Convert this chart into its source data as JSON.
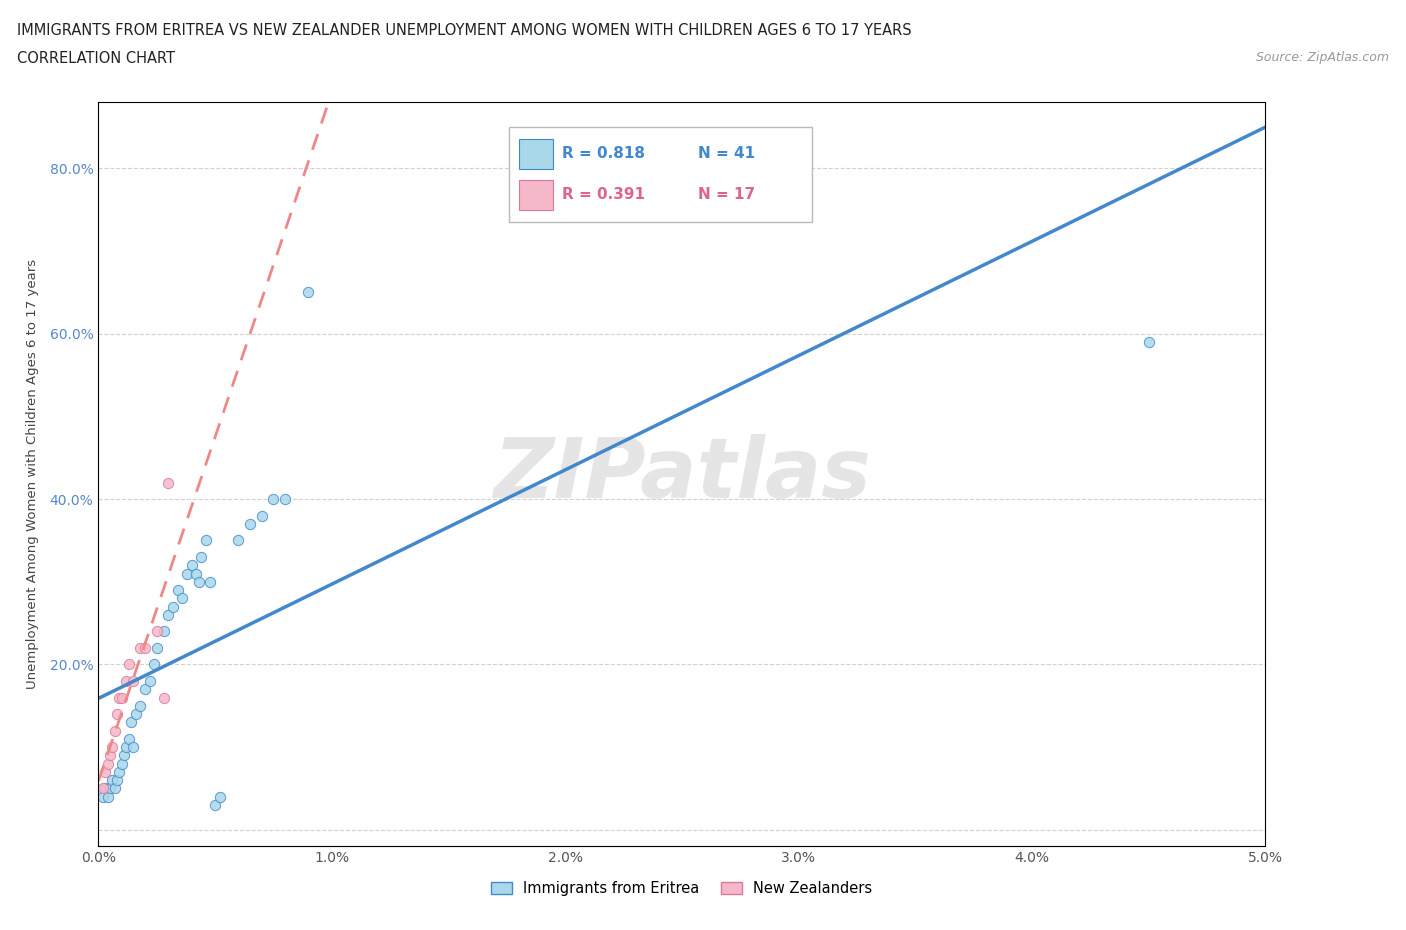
{
  "title_line1": "IMMIGRANTS FROM ERITREA VS NEW ZEALANDER UNEMPLOYMENT AMONG WOMEN WITH CHILDREN AGES 6 TO 17 YEARS",
  "title_line2": "CORRELATION CHART",
  "source_text": "Source: ZipAtlas.com",
  "ylabel": "Unemployment Among Women with Children Ages 6 to 17 years",
  "xlim": [
    0.0,
    0.05
  ],
  "ylim": [
    -0.02,
    0.88
  ],
  "xticks": [
    0.0,
    0.01,
    0.02,
    0.03,
    0.04,
    0.05
  ],
  "xticklabels": [
    "0.0%",
    "1.0%",
    "2.0%",
    "3.0%",
    "4.0%",
    "5.0%"
  ],
  "yticks": [
    0.0,
    0.2,
    0.4,
    0.6,
    0.8
  ],
  "yticklabels": [
    "",
    "20.0%",
    "40.0%",
    "60.0%",
    "80.0%"
  ],
  "color_eritrea": "#a8d8ea",
  "color_nz": "#f4b8c8",
  "color_line_eritrea": "#4488cc",
  "color_line_nz": "#ee8888",
  "watermark_text": "ZIPatlas",
  "legend_r1": "R = 0.818",
  "legend_n1": "N = 41",
  "legend_r2": "R = 0.391",
  "legend_n2": "N = 17",
  "eritrea_x": [
    0.0002,
    0.0003,
    0.0004,
    0.0005,
    0.0006,
    0.0007,
    0.0008,
    0.0009,
    0.001,
    0.0011,
    0.0012,
    0.0013,
    0.0014,
    0.0015,
    0.0016,
    0.0018,
    0.002,
    0.0022,
    0.0024,
    0.0025,
    0.0028,
    0.003,
    0.0032,
    0.0034,
    0.0036,
    0.0038,
    0.004,
    0.0042,
    0.0043,
    0.0044,
    0.0046,
    0.0048,
    0.005,
    0.0052,
    0.006,
    0.0065,
    0.007,
    0.0075,
    0.008,
    0.009,
    0.045
  ],
  "eritrea_y": [
    0.04,
    0.05,
    0.04,
    0.05,
    0.06,
    0.05,
    0.06,
    0.07,
    0.08,
    0.09,
    0.1,
    0.11,
    0.13,
    0.1,
    0.14,
    0.15,
    0.17,
    0.18,
    0.2,
    0.22,
    0.24,
    0.26,
    0.27,
    0.29,
    0.28,
    0.31,
    0.32,
    0.31,
    0.3,
    0.33,
    0.35,
    0.3,
    0.03,
    0.04,
    0.35,
    0.37,
    0.38,
    0.4,
    0.4,
    0.65,
    0.59
  ],
  "nz_x": [
    0.0002,
    0.0003,
    0.0004,
    0.0005,
    0.0006,
    0.0007,
    0.0008,
    0.0009,
    0.001,
    0.0012,
    0.0013,
    0.0015,
    0.0018,
    0.002,
    0.0025,
    0.0028,
    0.003
  ],
  "nz_y": [
    0.05,
    0.07,
    0.08,
    0.09,
    0.1,
    0.12,
    0.14,
    0.16,
    0.16,
    0.18,
    0.2,
    0.18,
    0.22,
    0.22,
    0.24,
    0.16,
    0.42
  ]
}
